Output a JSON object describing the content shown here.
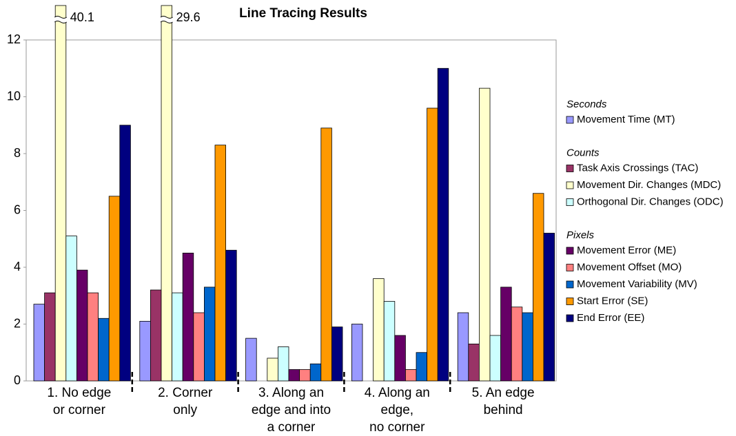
{
  "chart_data": {
    "type": "bar",
    "title": "Line Tracing Results",
    "categories": [
      [
        "1. No edge",
        "or corner"
      ],
      [
        "2. Corner",
        "only"
      ],
      [
        "3. Along an",
        "edge and into",
        "a corner"
      ],
      [
        "4. Along an",
        "edge,",
        "no corner"
      ],
      [
        "5. An edge",
        "behind"
      ]
    ],
    "legend_groups": [
      "Seconds",
      "Counts",
      "Pixels"
    ],
    "series": [
      {
        "name": "Movement Time (MT)",
        "group": 0,
        "color": "#9999ff",
        "values": [
          2.7,
          2.1,
          1.5,
          2.0,
          2.4
        ]
      },
      {
        "name": "Task Axis Crossings (TAC)",
        "group": 1,
        "color": "#993366",
        "values": [
          3.1,
          3.2,
          0,
          0,
          1.3
        ]
      },
      {
        "name": "Movement Dir. Changes (MDC)",
        "group": 1,
        "color": "#ffffcc",
        "values": [
          40.1,
          29.6,
          0.8,
          3.6,
          10.3
        ],
        "value_labels": [
          "40.1",
          "29.6",
          null,
          null,
          null
        ]
      },
      {
        "name": "Orthogonal Dir. Changes (ODC)",
        "group": 1,
        "color": "#ccffff",
        "values": [
          5.1,
          3.1,
          1.2,
          2.8,
          1.6
        ]
      },
      {
        "name": "Movement Error (ME)",
        "group": 2,
        "color": "#660066",
        "values": [
          3.9,
          4.5,
          0.4,
          1.6,
          3.3
        ]
      },
      {
        "name": "Movement Offset (MO)",
        "group": 2,
        "color": "#ff8080",
        "values": [
          3.1,
          2.4,
          0.4,
          0.4,
          2.6
        ]
      },
      {
        "name": "Movement Variability (MV)",
        "group": 2,
        "color": "#0066cc",
        "values": [
          2.2,
          3.3,
          0.6,
          1.0,
          2.4
        ]
      },
      {
        "name": "Start Error (SE)",
        "group": 2,
        "color": "#ff9900",
        "values": [
          6.5,
          8.3,
          8.9,
          9.6,
          6.6
        ]
      },
      {
        "name": "End Error (EE)",
        "group": 2,
        "color": "#000080",
        "values": [
          9.0,
          4.6,
          1.9,
          11.0,
          5.2
        ]
      }
    ],
    "ylim": [
      0,
      12
    ],
    "yticks": [
      0,
      2,
      4,
      6,
      8,
      10,
      12
    ],
    "grid": false
  }
}
